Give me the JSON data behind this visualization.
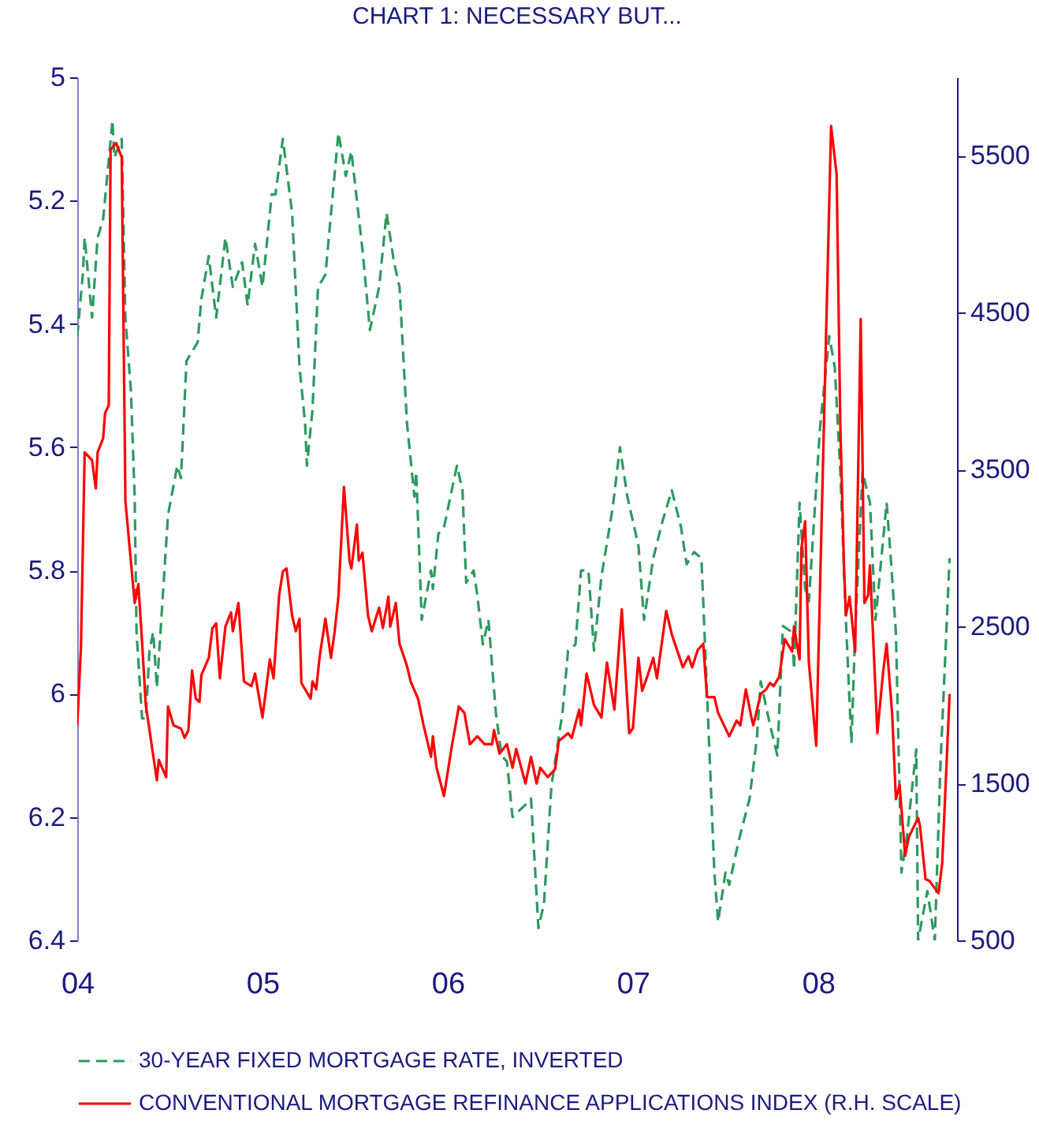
{
  "chart_data": {
    "type": "line",
    "title": "CHART 1: NECESSARY BUT...",
    "xlim": [
      2004,
      2008.75
    ],
    "xticks": [
      {
        "value": 2004,
        "label": "04"
      },
      {
        "value": 2005,
        "label": "05"
      },
      {
        "value": 2006,
        "label": "06"
      },
      {
        "value": 2007,
        "label": "07"
      },
      {
        "value": 2008,
        "label": "08"
      }
    ],
    "ylim": [
      6.4,
      5
    ],
    "yticks": [
      5,
      5.2,
      5.4,
      5.6,
      5.8,
      6,
      6.2,
      6.4
    ],
    "y2lim": [
      500,
      6000
    ],
    "y2ticks": [
      500,
      1500,
      2500,
      3500,
      4500,
      5500
    ],
    "legend": "bottom",
    "series": [
      {
        "name": "30-YEAR FIXED MORTGAGE RATE, INVERTED",
        "color": "#2e9960",
        "line_style": "dashed",
        "x": [
          2004.0,
          2004.03,
          2004.04,
          2004.08,
          2004.11,
          2004.14,
          2004.19,
          2004.2,
          2004.24,
          2004.26,
          2004.29,
          2004.31,
          2004.32,
          2004.35,
          2004.37,
          2004.39,
          2004.41,
          2004.43,
          2004.46,
          2004.49,
          2004.54,
          2004.56,
          2004.59,
          2004.65,
          2004.67,
          2004.71,
          2004.75,
          2004.8,
          2004.84,
          2004.89,
          2004.92,
          2004.96,
          2005.0,
          2005.05,
          2005.07,
          2005.11,
          2005.16,
          2005.2,
          2005.23,
          2005.24,
          2005.27,
          2005.3,
          2005.34,
          2005.41,
          2005.45,
          2005.48,
          2005.54,
          2005.58,
          2005.63,
          2005.67,
          2005.71,
          2005.74,
          2005.78,
          2005.82,
          2005.83,
          2005.86,
          2005.91,
          2005.92,
          2005.95,
          2005.98,
          2006.05,
          2006.08,
          2006.1,
          2006.14,
          2006.16,
          2006.19,
          2006.22,
          2006.26,
          2006.29,
          2006.32,
          2006.35,
          2006.42,
          2006.45,
          2006.49,
          2006.52,
          2006.56,
          2006.62,
          2006.65,
          2006.69,
          2006.72,
          2006.76,
          2006.79,
          2006.83,
          2006.89,
          2006.93,
          2006.97,
          2007.0,
          2007.03,
          2007.06,
          2007.11,
          2007.16,
          2007.21,
          2007.26,
          2007.29,
          2007.33,
          2007.37,
          2007.41,
          2007.44,
          2007.46,
          2007.5,
          2007.52,
          2007.57,
          2007.63,
          2007.67,
          2007.69,
          2007.74,
          2007.78,
          2007.81,
          2007.86,
          2007.87,
          2007.9,
          2007.93,
          2007.95,
          2008.01,
          2008.06,
          2008.09,
          2008.12,
          2008.15,
          2008.18,
          2008.2,
          2008.24,
          2008.28,
          2008.31,
          2008.37,
          2008.39,
          2008.42,
          2008.45,
          2008.48,
          2008.53,
          2008.54,
          2008.59,
          2008.63,
          2008.66,
          2008.71
        ],
        "values": [
          5.42,
          5.32,
          5.26,
          5.39,
          5.26,
          5.23,
          5.07,
          5.13,
          5.1,
          5.39,
          5.51,
          5.68,
          5.9,
          6.04,
          6.04,
          5.93,
          5.9,
          5.99,
          5.85,
          5.71,
          5.63,
          5.65,
          5.46,
          5.43,
          5.36,
          5.29,
          5.39,
          5.26,
          5.34,
          5.3,
          5.37,
          5.27,
          5.34,
          5.19,
          5.19,
          5.1,
          5.22,
          5.47,
          5.56,
          5.63,
          5.54,
          5.34,
          5.32,
          5.09,
          5.16,
          5.12,
          5.28,
          5.41,
          5.34,
          5.22,
          5.3,
          5.34,
          5.56,
          5.68,
          5.64,
          5.88,
          5.8,
          5.83,
          5.74,
          5.73,
          5.63,
          5.67,
          5.82,
          5.8,
          5.84,
          5.92,
          5.88,
          6.03,
          6.1,
          6.11,
          6.2,
          6.18,
          6.17,
          6.38,
          6.34,
          6.15,
          6.03,
          5.93,
          5.92,
          5.8,
          5.8,
          5.93,
          5.81,
          5.7,
          5.6,
          5.68,
          5.72,
          5.76,
          5.88,
          5.78,
          5.72,
          5.67,
          5.73,
          5.79,
          5.77,
          5.78,
          6.07,
          6.29,
          6.37,
          6.29,
          6.31,
          6.24,
          6.17,
          6.07,
          5.98,
          6.05,
          6.1,
          5.89,
          5.9,
          5.96,
          5.69,
          5.83,
          5.85,
          5.57,
          5.42,
          5.47,
          5.64,
          5.88,
          6.08,
          5.9,
          5.64,
          5.69,
          5.88,
          5.69,
          5.77,
          5.9,
          6.29,
          6.23,
          6.09,
          6.4,
          6.32,
          6.4,
          6.12,
          5.78
        ]
      },
      {
        "name": "CONVENTIONAL MORTGAGE REFINANCE APPLICATIONS INDEX (R.H. SCALE)",
        "color": "#ff0000",
        "line_style": "solid",
        "axis": "y2",
        "x": [
          2004.0,
          2004.02,
          2004.04,
          2004.08,
          2004.1,
          2004.11,
          2004.14,
          2004.15,
          2004.17,
          2004.18,
          2004.21,
          2004.24,
          2004.26,
          2004.27,
          2004.31,
          2004.33,
          2004.35,
          2004.37,
          2004.39,
          2004.43,
          2004.44,
          2004.48,
          2004.49,
          2004.52,
          2004.56,
          2004.58,
          2004.6,
          2004.62,
          2004.64,
          2004.66,
          2004.67,
          2004.71,
          2004.73,
          2004.75,
          2004.77,
          2004.8,
          2004.83,
          2004.84,
          2004.87,
          2004.9,
          2004.94,
          2004.96,
          2005.0,
          2005.04,
          2005.06,
          2005.09,
          2005.11,
          2005.13,
          2005.16,
          2005.18,
          2005.2,
          2005.21,
          2005.26,
          2005.27,
          2005.29,
          2005.31,
          2005.34,
          2005.37,
          2005.39,
          2005.41,
          2005.44,
          2005.47,
          2005.48,
          2005.51,
          2005.52,
          2005.54,
          2005.57,
          2005.59,
          2005.63,
          2005.65,
          2005.68,
          2005.69,
          2005.72,
          2005.74,
          2005.78,
          2005.8,
          2005.84,
          2005.87,
          2005.91,
          2005.92,
          2005.94,
          2005.98,
          2006.02,
          2006.06,
          2006.09,
          2006.12,
          2006.16,
          2006.2,
          2006.24,
          2006.25,
          2006.28,
          2006.32,
          2006.35,
          2006.37,
          2006.42,
          2006.45,
          2006.48,
          2006.5,
          2006.54,
          2006.58,
          2006.6,
          2006.65,
          2006.67,
          2006.71,
          2006.72,
          2006.75,
          2006.79,
          2006.83,
          2006.86,
          2006.9,
          2006.94,
          2006.98,
          2007.0,
          2007.03,
          2007.05,
          2007.08,
          2007.11,
          2007.13,
          2007.18,
          2007.21,
          2007.27,
          2007.3,
          2007.32,
          2007.35,
          2007.38,
          2007.4,
          2007.44,
          2007.46,
          2007.52,
          2007.56,
          2007.58,
          2007.61,
          2007.64,
          2007.65,
          2007.69,
          2007.72,
          2007.74,
          2007.76,
          2007.79,
          2007.82,
          2007.86,
          2007.87,
          2007.9,
          2007.91,
          2007.93,
          2007.95,
          2007.99,
          2008.07,
          2008.1,
          2008.12,
          2008.14,
          2008.15,
          2008.17,
          2008.2,
          2008.23,
          2008.25,
          2008.27,
          2008.28,
          2008.32,
          2008.35,
          2008.37,
          2008.4,
          2008.42,
          2008.44,
          2008.47,
          2008.49,
          2008.54,
          2008.55,
          2008.58,
          2008.6,
          2008.65,
          2008.67,
          2008.71
        ],
        "values": [
          1870,
          2370,
          3610,
          3560,
          3380,
          3610,
          3700,
          3860,
          3910,
          5540,
          5580,
          5490,
          3300,
          3170,
          2650,
          2770,
          2400,
          2000,
          1840,
          1520,
          1650,
          1540,
          1990,
          1870,
          1850,
          1790,
          1840,
          2220,
          2040,
          2020,
          2190,
          2300,
          2490,
          2520,
          2170,
          2500,
          2590,
          2470,
          2650,
          2150,
          2120,
          2200,
          1920,
          2290,
          2170,
          2700,
          2850,
          2870,
          2570,
          2470,
          2550,
          2140,
          2040,
          2150,
          2100,
          2320,
          2550,
          2300,
          2470,
          2690,
          3390,
          2920,
          2870,
          3150,
          2920,
          2970,
          2570,
          2470,
          2620,
          2490,
          2690,
          2500,
          2650,
          2390,
          2250,
          2150,
          2040,
          1870,
          1670,
          1800,
          1600,
          1420,
          1720,
          1990,
          1950,
          1750,
          1800,
          1750,
          1750,
          1840,
          1690,
          1750,
          1600,
          1720,
          1500,
          1670,
          1500,
          1600,
          1540,
          1590,
          1770,
          1820,
          1790,
          1970,
          1870,
          2200,
          2000,
          1920,
          2270,
          1970,
          2610,
          1820,
          1850,
          2300,
          2090,
          2190,
          2300,
          2170,
          2600,
          2450,
          2240,
          2310,
          2240,
          2350,
          2390,
          2050,
          2050,
          1950,
          1800,
          1900,
          1870,
          2100,
          1920,
          1870,
          2070,
          2100,
          2140,
          2120,
          2180,
          2420,
          2340,
          2500,
          2290,
          3000,
          3170,
          2270,
          1740,
          5690,
          5380,
          3780,
          2870,
          2570,
          2690,
          2340,
          4460,
          2650,
          2700,
          2890,
          1820,
          2200,
          2390,
          1940,
          1400,
          1490,
          1040,
          1160,
          1280,
          1230,
          890,
          880,
          800,
          990,
          2070
        ]
      }
    ]
  }
}
